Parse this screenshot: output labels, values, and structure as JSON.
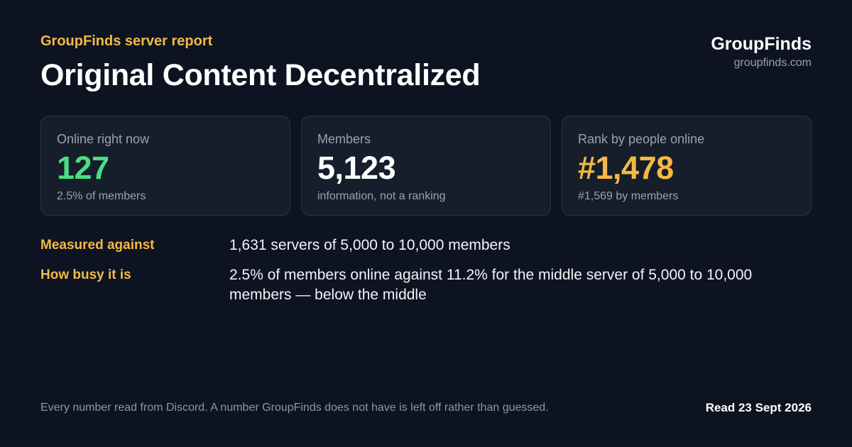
{
  "header": {
    "kicker": "GroupFinds server report",
    "title": "Original Content Decentralized"
  },
  "brand": {
    "name": "GroupFinds",
    "url": "groupfinds.com"
  },
  "cards": [
    {
      "label": "Online right now",
      "value": "127",
      "sub": "2.5% of members",
      "accent": "#4ade80"
    },
    {
      "label": "Members",
      "value": "5,123",
      "sub": "information, not a ranking",
      "accent": "#ffffff"
    },
    {
      "label": "Rank by people online",
      "value": "#1,478",
      "sub": "#1,569 by members",
      "accent": "#f5b942"
    }
  ],
  "facts": [
    {
      "label": "Measured against",
      "text": "1,631 servers of 5,000 to 10,000 members"
    },
    {
      "label": "How busy it is",
      "text": "2.5% of members online against 11.2% for the middle server of 5,000 to 10,000 members — below the middle"
    }
  ],
  "footer": {
    "note": "Every number read from Discord. A number GroupFinds does not have is left off rather than guessed.",
    "date": "Read 23 Sept 2026"
  },
  "colors": {
    "background": "#0d1321",
    "card_background": "#161d2b",
    "accent_amber": "#f5b942",
    "accent_green": "#4ade80"
  }
}
